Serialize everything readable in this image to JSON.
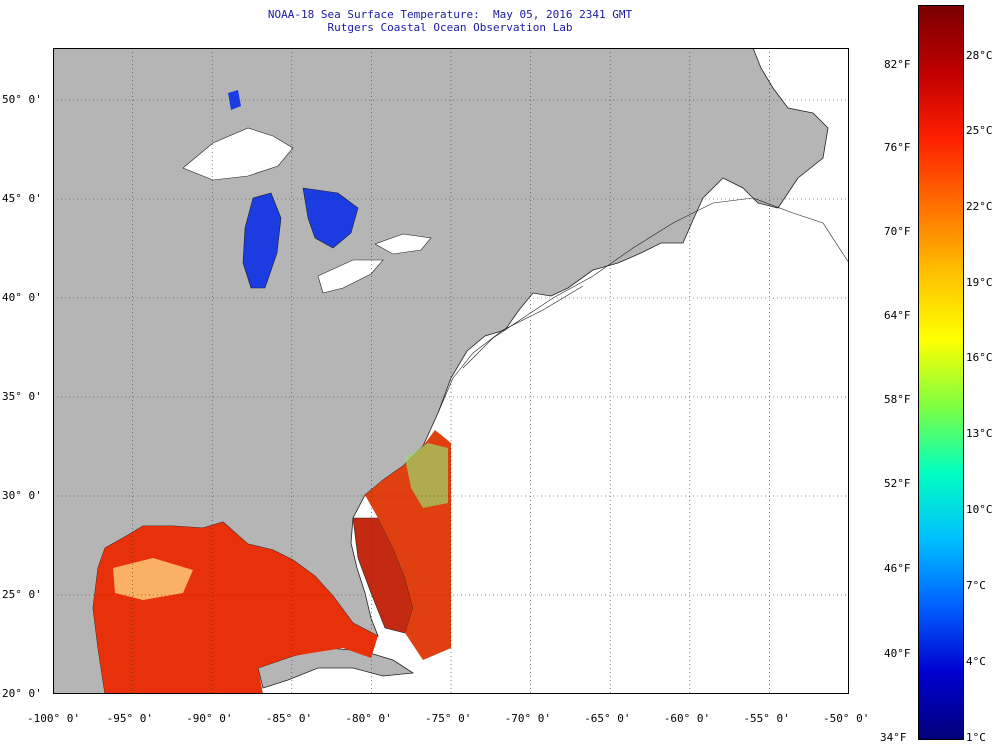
{
  "title": {
    "line1": "NOAA-18 Sea Surface Temperature:  May 05, 2016 2341 GMT",
    "line2": "Rutgers Coastal Ocean Observation Lab"
  },
  "map": {
    "lon_labels": [
      "-100° 0'",
      "-95° 0'",
      "-90° 0'",
      "-85° 0'",
      "-80° 0'",
      "-75° 0'",
      "-70° 0'",
      "-65° 0'",
      "-60° 0'",
      "-55° 0'",
      "-50° 0'"
    ],
    "lat_labels": [
      "50° 0'",
      "45° 0'",
      "40° 0'",
      "35° 0'",
      "30° 0'",
      "25° 0'",
      "20° 0'"
    ],
    "land_color": "#b5b5b5",
    "ocean_nodata_color": "#ffffff",
    "warm_sst_color": "#e8300a",
    "lake_color": "#1030d8"
  },
  "colorbar": {
    "fahrenheit_labels": [
      "82°F",
      "76°F",
      "70°F",
      "64°F",
      "58°F",
      "52°F",
      "46°F",
      "40°F",
      "34°F"
    ],
    "celsius_labels": [
      "28°C",
      "25°C",
      "22°C",
      "19°C",
      "16°C",
      "13°C",
      "10°C",
      "7°C",
      "4°C",
      "1°C"
    ],
    "colors_top_to_bottom": [
      "#7a0000",
      "#c00000",
      "#ff2000",
      "#ff7000",
      "#ffc000",
      "#ffff00",
      "#80ff40",
      "#00ffc0",
      "#00c0ff",
      "#0060ff",
      "#0000d0",
      "#00007a"
    ]
  }
}
